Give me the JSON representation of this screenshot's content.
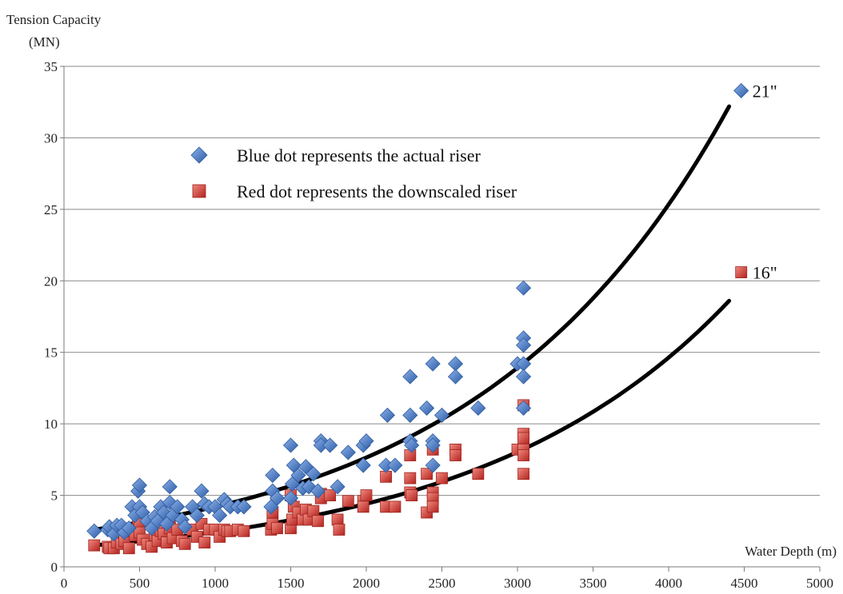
{
  "chart_data": {
    "type": "scatter",
    "xlabel": "Water Depth (m)",
    "ylabel_line1": "Tension Capacity",
    "ylabel_line2": "(MN)",
    "xlim": [
      0,
      5000
    ],
    "ylim": [
      0,
      35
    ],
    "xticks": [
      0,
      500,
      1000,
      1500,
      2000,
      2500,
      3000,
      3500,
      4000,
      4500,
      5000
    ],
    "yticks": [
      0,
      5,
      10,
      15,
      20,
      25,
      30,
      35
    ],
    "grid": "horizontal",
    "legend_placement": "upper-left",
    "legend": [
      {
        "label": "Blue dot represents the actual riser",
        "marker": "diamond",
        "color": "#3f74c4"
      },
      {
        "label": "Red dot represents the downscaled riser",
        "marker": "square",
        "color": "#d9322e"
      }
    ],
    "series": [
      {
        "name": "Blue dot represents the actual riser",
        "marker": "diamond",
        "color": "#3f74c4",
        "points": [
          [
            200,
            2.5
          ],
          [
            290,
            2.6
          ],
          [
            300,
            2.8
          ],
          [
            330,
            2.3
          ],
          [
            350,
            2.9
          ],
          [
            380,
            2.9
          ],
          [
            400,
            2.4
          ],
          [
            430,
            2.7
          ],
          [
            450,
            4.2
          ],
          [
            470,
            3.6
          ],
          [
            490,
            5.3
          ],
          [
            500,
            5.7
          ],
          [
            500,
            4.2
          ],
          [
            520,
            3.8
          ],
          [
            550,
            3.2
          ],
          [
            580,
            2.7
          ],
          [
            600,
            3.5
          ],
          [
            620,
            3.2
          ],
          [
            640,
            4.2
          ],
          [
            660,
            3.8
          ],
          [
            680,
            3.0
          ],
          [
            700,
            5.6
          ],
          [
            700,
            4.5
          ],
          [
            720,
            3.6
          ],
          [
            750,
            4.2
          ],
          [
            780,
            3.3
          ],
          [
            800,
            2.8
          ],
          [
            850,
            4.2
          ],
          [
            880,
            3.6
          ],
          [
            910,
            5.3
          ],
          [
            930,
            4.4
          ],
          [
            960,
            4.2
          ],
          [
            1000,
            4.2
          ],
          [
            1030,
            3.6
          ],
          [
            1060,
            4.7
          ],
          [
            1080,
            4.4
          ],
          [
            1100,
            4.2
          ],
          [
            1150,
            4.2
          ],
          [
            1190,
            4.2
          ],
          [
            1370,
            4.2
          ],
          [
            1380,
            6.4
          ],
          [
            1380,
            5.3
          ],
          [
            1410,
            4.8
          ],
          [
            1500,
            8.5
          ],
          [
            1500,
            4.8
          ],
          [
            1510,
            5.8
          ],
          [
            1520,
            7.1
          ],
          [
            1550,
            6.4
          ],
          [
            1580,
            5.5
          ],
          [
            1600,
            7.0
          ],
          [
            1620,
            5.6
          ],
          [
            1650,
            6.5
          ],
          [
            1680,
            5.3
          ],
          [
            1700,
            8.8
          ],
          [
            1700,
            8.5
          ],
          [
            1760,
            8.5
          ],
          [
            1810,
            5.6
          ],
          [
            1880,
            8.0
          ],
          [
            1980,
            8.5
          ],
          [
            2000,
            8.8
          ],
          [
            1980,
            7.1
          ],
          [
            2140,
            10.6
          ],
          [
            2130,
            7.1
          ],
          [
            2190,
            7.1
          ],
          [
            2290,
            13.3
          ],
          [
            2290,
            10.6
          ],
          [
            2290,
            8.8
          ],
          [
            2300,
            8.5
          ],
          [
            2400,
            11.1
          ],
          [
            2440,
            14.2
          ],
          [
            2440,
            8.8
          ],
          [
            2440,
            8.5
          ],
          [
            2440,
            7.1
          ],
          [
            2500,
            10.6
          ],
          [
            2590,
            14.2
          ],
          [
            2590,
            13.3
          ],
          [
            2740,
            11.1
          ],
          [
            3000,
            14.2
          ],
          [
            3040,
            19.5
          ],
          [
            3040,
            16.0
          ],
          [
            3040,
            15.5
          ],
          [
            3040,
            14.2
          ],
          [
            3040,
            13.3
          ],
          [
            3040,
            11.1
          ],
          [
            4480,
            33.3
          ]
        ]
      },
      {
        "name": "Red dot represents the downscaled riser",
        "marker": "square",
        "color": "#d9322e",
        "points": [
          [
            200,
            1.5
          ],
          [
            290,
            1.4
          ],
          [
            300,
            1.3
          ],
          [
            330,
            1.3
          ],
          [
            350,
            1.7
          ],
          [
            380,
            1.6
          ],
          [
            400,
            1.8
          ],
          [
            430,
            1.3
          ],
          [
            450,
            2.5
          ],
          [
            470,
            2.2
          ],
          [
            490,
            3.3
          ],
          [
            500,
            3.0
          ],
          [
            500,
            2.4
          ],
          [
            520,
            1.9
          ],
          [
            550,
            1.6
          ],
          [
            580,
            1.4
          ],
          [
            600,
            2.2
          ],
          [
            620,
            1.8
          ],
          [
            640,
            2.5
          ],
          [
            660,
            2.3
          ],
          [
            680,
            1.7
          ],
          [
            700,
            3.3
          ],
          [
            700,
            2.7
          ],
          [
            720,
            2.0
          ],
          [
            750,
            2.6
          ],
          [
            780,
            1.8
          ],
          [
            800,
            1.6
          ],
          [
            850,
            2.6
          ],
          [
            880,
            2.1
          ],
          [
            910,
            3.0
          ],
          [
            930,
            1.7
          ],
          [
            960,
            2.6
          ],
          [
            1000,
            2.6
          ],
          [
            1030,
            2.1
          ],
          [
            1060,
            2.6
          ],
          [
            1080,
            2.5
          ],
          [
            1100,
            2.5
          ],
          [
            1150,
            2.6
          ],
          [
            1190,
            2.5
          ],
          [
            1370,
            2.6
          ],
          [
            1380,
            3.8
          ],
          [
            1380,
            3.0
          ],
          [
            1410,
            2.7
          ],
          [
            1500,
            5.0
          ],
          [
            1500,
            2.7
          ],
          [
            1510,
            3.3
          ],
          [
            1520,
            4.2
          ],
          [
            1550,
            3.8
          ],
          [
            1580,
            3.3
          ],
          [
            1600,
            4.0
          ],
          [
            1620,
            3.3
          ],
          [
            1650,
            3.9
          ],
          [
            1680,
            3.2
          ],
          [
            1700,
            5.1
          ],
          [
            1700,
            4.8
          ],
          [
            1760,
            5.0
          ],
          [
            1810,
            3.3
          ],
          [
            1820,
            2.6
          ],
          [
            1880,
            4.6
          ],
          [
            1980,
            4.6
          ],
          [
            2000,
            5.0
          ],
          [
            1980,
            4.2
          ],
          [
            2130,
            6.3
          ],
          [
            2130,
            4.2
          ],
          [
            2190,
            4.2
          ],
          [
            2290,
            7.8
          ],
          [
            2290,
            6.2
          ],
          [
            2290,
            5.2
          ],
          [
            2300,
            5.0
          ],
          [
            2400,
            6.5
          ],
          [
            2400,
            3.8
          ],
          [
            2440,
            8.2
          ],
          [
            2440,
            5.2
          ],
          [
            2440,
            4.8
          ],
          [
            2440,
            4.2
          ],
          [
            2500,
            6.2
          ],
          [
            2590,
            8.2
          ],
          [
            2590,
            7.8
          ],
          [
            2740,
            6.5
          ],
          [
            3000,
            8.2
          ],
          [
            3040,
            11.3
          ],
          [
            3040,
            9.3
          ],
          [
            3040,
            9.0
          ],
          [
            3040,
            8.2
          ],
          [
            3040,
            7.8
          ],
          [
            3040,
            6.5
          ],
          [
            4480,
            20.6
          ]
        ]
      }
    ],
    "trendlines": [
      {
        "color": "#000000",
        "x_start": 200,
        "x_end": 4400,
        "y_start": 2.6,
        "y_end": 32.2
      },
      {
        "color": "#000000",
        "x_start": 200,
        "x_end": 4400,
        "y_start": 1.5,
        "y_end": 18.6
      }
    ],
    "annotations": [
      {
        "text": "21\"",
        "x": 4480,
        "y": 33.3
      },
      {
        "text": "16\"",
        "x": 4480,
        "y": 20.6
      }
    ]
  }
}
